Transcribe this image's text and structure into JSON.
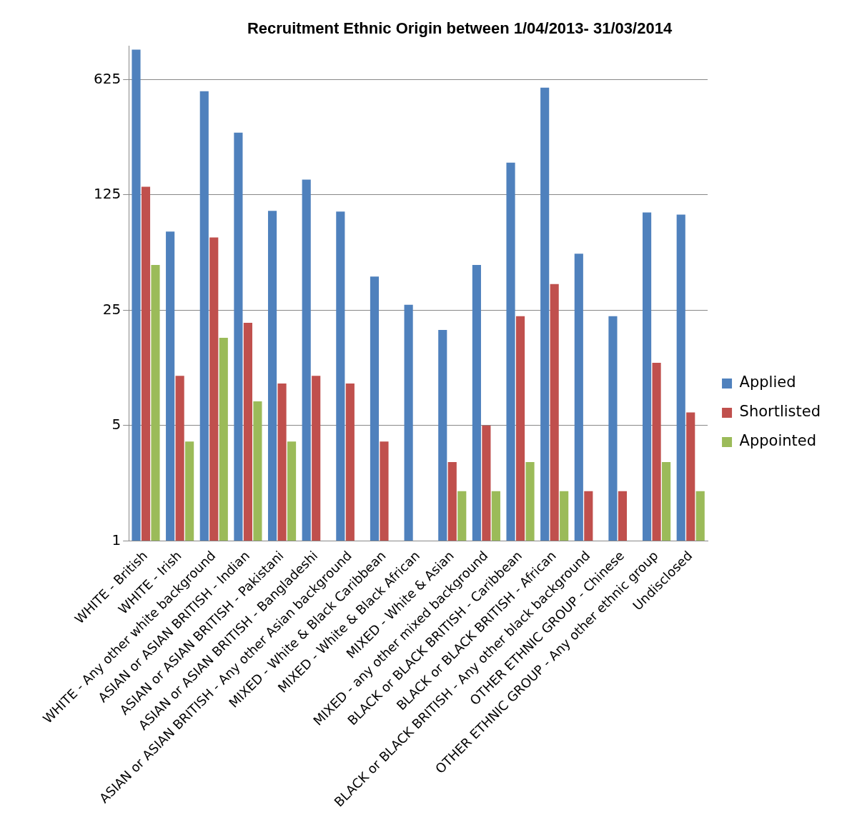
{
  "chart_data": {
    "type": "bar",
    "title": "Recruitment Ethnic Origin between 1/04/2013- 31/03/2014",
    "categories": [
      "WHITE - British",
      "WHITE - Irish",
      "WHITE - Any other white background",
      "ASIAN or ASIAN BRITISH - Indian",
      "ASIAN or ASIAN BRITISH - Pakistani",
      "ASIAN or ASIAN BRITISH - Bangladeshi",
      "ASIAN or ASIAN BRITISH - Any other Asian background",
      "MIXED - White & Black Caribbean",
      "MIXED - White & Black African",
      "MIXED - White & Asian",
      "MIXED - any other mixed background",
      "BLACK or BLACK BRITISH - Caribbean",
      "BLACK or BLACK BRITISH - African",
      "BLACK or BLACK BRITISH - Any other black background",
      "OTHER ETHNIC GROUP - Chinese",
      "OTHER ETHNIC GROUP - Any other ethnic group",
      "Undisclosed"
    ],
    "series": [
      {
        "name": "Applied",
        "color": "#4f81bd",
        "values": [
          950,
          75,
          532,
          298,
          100,
          155,
          99,
          40,
          27,
          19,
          47,
          196,
          559,
          55,
          23,
          98,
          95
        ]
      },
      {
        "name": "Shortlisted",
        "color": "#c0504d",
        "values": [
          140,
          10,
          69,
          21,
          9,
          10,
          9,
          4,
          null,
          3,
          5,
          23,
          36,
          2,
          2,
          12,
          6
        ]
      },
      {
        "name": "Appointed",
        "color": "#9bbb59",
        "values": [
          47,
          4,
          17,
          7,
          4,
          null,
          null,
          null,
          null,
          2,
          2,
          3,
          2,
          null,
          null,
          3,
          2
        ]
      }
    ],
    "log": "y",
    "ylim": [
      1,
      1000
    ],
    "yticks": [
      1,
      5,
      25,
      125,
      625
    ],
    "grid": "y",
    "legend": "right"
  }
}
